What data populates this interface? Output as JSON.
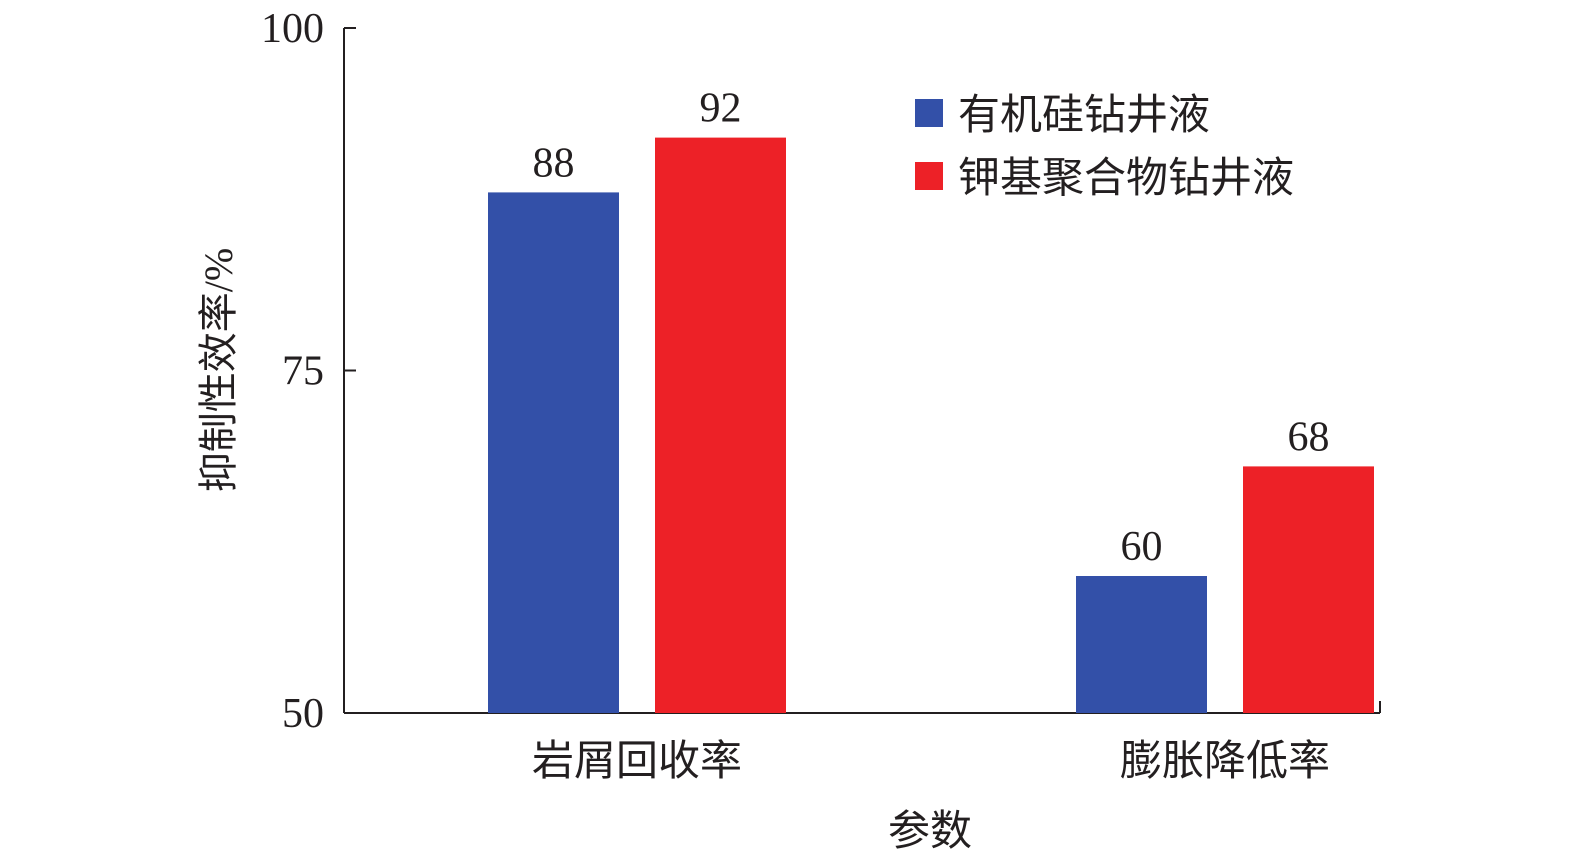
{
  "chart_data": {
    "type": "bar",
    "y_label": "抑制性效率/%",
    "x_label": "参数",
    "categories": [
      "岩屑回收率",
      "膨胀降低率"
    ],
    "series": [
      {
        "name": "有机硅钻井液",
        "color": "#3350a8",
        "values": [
          88,
          60
        ]
      },
      {
        "name": "钾基聚合物钻井液",
        "color": "#ed2127",
        "values": [
          92,
          68
        ]
      }
    ],
    "ylim": [
      50,
      100
    ],
    "yticks": [
      50,
      75,
      100
    ],
    "legend": "upper right"
  }
}
